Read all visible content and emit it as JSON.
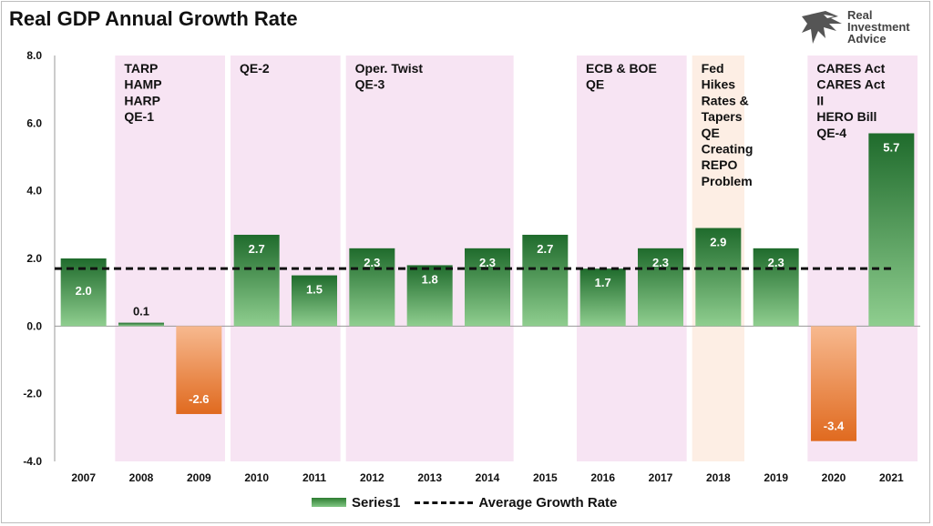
{
  "chart_data": {
    "type": "bar",
    "title": "Real GDP Annual Growth Rate",
    "categories": [
      "2007",
      "2008",
      "2009",
      "2010",
      "2011",
      "2012",
      "2013",
      "2014",
      "2015",
      "2016",
      "2017",
      "2018",
      "2019",
      "2020",
      "2021"
    ],
    "series": [
      {
        "name": "Series1",
        "values": [
          2.0,
          0.1,
          -2.6,
          2.7,
          1.5,
          2.3,
          1.8,
          2.3,
          2.7,
          1.7,
          2.3,
          2.9,
          2.3,
          -3.4,
          5.7
        ]
      },
      {
        "name": "Average Growth Rate",
        "type": "line",
        "values": [
          1.7,
          1.7,
          1.7,
          1.7,
          1.7,
          1.7,
          1.7,
          1.7,
          1.7,
          1.7,
          1.7,
          1.7,
          1.7,
          1.7,
          1.7
        ]
      }
    ],
    "ylim": [
      -4.0,
      8.0
    ],
    "yticks": [
      "8.0",
      "6.0",
      "4.0",
      "2.0",
      "0.0",
      "-2.0",
      "-4.0"
    ],
    "legend_position": "bottom",
    "grid": false,
    "annotations": [
      {
        "from": "2008",
        "to": "2009",
        "color": "#f7e4f3",
        "lines": [
          "TARP",
          "HAMP",
          "HARP",
          "QE-1"
        ]
      },
      {
        "from": "2010",
        "to": "2011",
        "color": "#f7e4f3",
        "lines": [
          "QE-2"
        ]
      },
      {
        "from": "2012",
        "to": "2014",
        "color": "#f7e4f3",
        "lines": [
          "Oper. Twist",
          "QE-3"
        ]
      },
      {
        "from": "2016",
        "to": "2017",
        "color": "#f7e4f3",
        "lines": [
          "ECB & BOE",
          "QE"
        ]
      },
      {
        "from": "2018",
        "to": "2018",
        "color": "#fdeee4",
        "lines": [
          "Fed",
          "Hikes",
          "Rates &",
          "Tapers",
          "QE",
          "Creating",
          "REPO",
          "Problem"
        ]
      },
      {
        "from": "2020",
        "to": "2021",
        "color": "#f7e4f3",
        "lines": [
          "CARES Act",
          "CARES Act",
          "II",
          "HERO Bill",
          "QE-4"
        ]
      }
    ],
    "colors": {
      "positive_dark": "#1f6b2c",
      "positive_light": "#8fce8f",
      "negative_dark": "#e06a1f",
      "negative_light": "#f7b98f",
      "average_line": "#111111"
    }
  },
  "logo": {
    "line1": "Real",
    "line2": "Investment",
    "line3": "Advice"
  }
}
